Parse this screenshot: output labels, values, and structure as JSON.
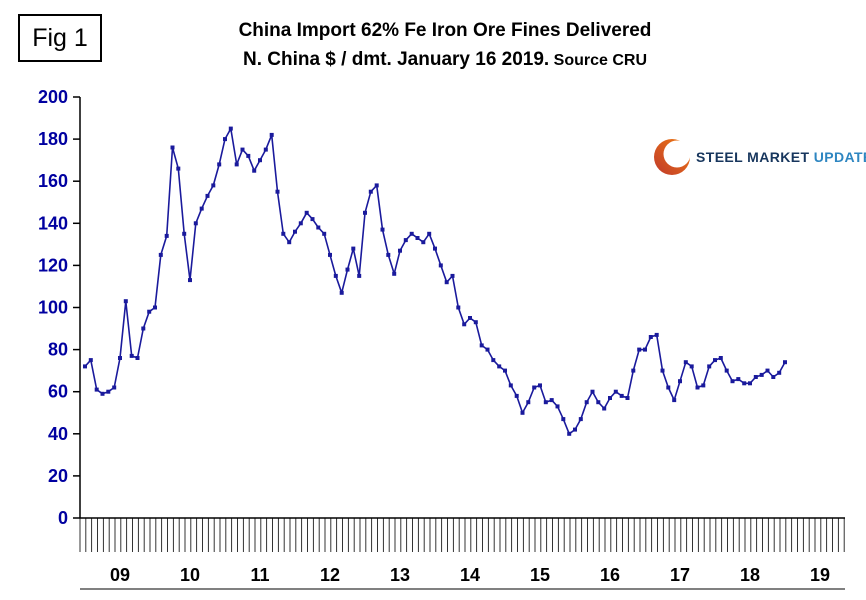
{
  "fig_label": "Fig 1",
  "title": {
    "line1": "China Import 62% Fe Iron Ore Fines Delivered",
    "line2": "N. China $ / dmt. January 16 2019.",
    "source": "Source CRU"
  },
  "logo": {
    "steel_market": "STEEL MARKET",
    "update": " UPDATE"
  },
  "colors": {
    "line": "#1a1a9c",
    "marker": "#1a1a9c",
    "axis_labels": "#0000a0",
    "year_labels": "#000000",
    "axis": "#000000",
    "logo_orange_outer": "#c0392b",
    "logo_orange_inner": "#f07d12"
  },
  "chart_data": {
    "type": "line",
    "title": "China Import 62% Fe Iron Ore Fines Delivered N. China $ / dmt. January 16 2019. Source CRU",
    "x_start_year": 2009,
    "x_interval": "monthly",
    "x_end": "2019-01-16",
    "ylabel": "$ / dmt",
    "ylim": [
      0,
      200
    ],
    "y_ticks": [
      0,
      20,
      40,
      60,
      80,
      100,
      120,
      140,
      160,
      180,
      200
    ],
    "year_labels": [
      "09",
      "10",
      "11",
      "12",
      "13",
      "14",
      "15",
      "16",
      "17",
      "18",
      "19"
    ],
    "marker": "square",
    "grid": false,
    "legend": false,
    "values": [
      72,
      75,
      61,
      59,
      60,
      62,
      76,
      103,
      77,
      76,
      90,
      98,
      100,
      125,
      134,
      176,
      166,
      135,
      113,
      140,
      147,
      153,
      158,
      168,
      180,
      185,
      168,
      175,
      172,
      165,
      170,
      175,
      182,
      155,
      135,
      131,
      136,
      140,
      145,
      142,
      138,
      135,
      125,
      115,
      107,
      118,
      128,
      115,
      145,
      155,
      158,
      137,
      125,
      116,
      127,
      132,
      135,
      133,
      131,
      135,
      128,
      120,
      112,
      115,
      100,
      92,
      95,
      93,
      82,
      80,
      75,
      72,
      70,
      63,
      58,
      50,
      55,
      62,
      63,
      55,
      56,
      53,
      47,
      40,
      42,
      47,
      55,
      60,
      55,
      52,
      57,
      60,
      58,
      57,
      70,
      80,
      80,
      86,
      87,
      70,
      62,
      56,
      65,
      74,
      72,
      62,
      63,
      72,
      75,
      76,
      70,
      65,
      66,
      64,
      64,
      67,
      68,
      70,
      67,
      69,
      74
    ]
  }
}
